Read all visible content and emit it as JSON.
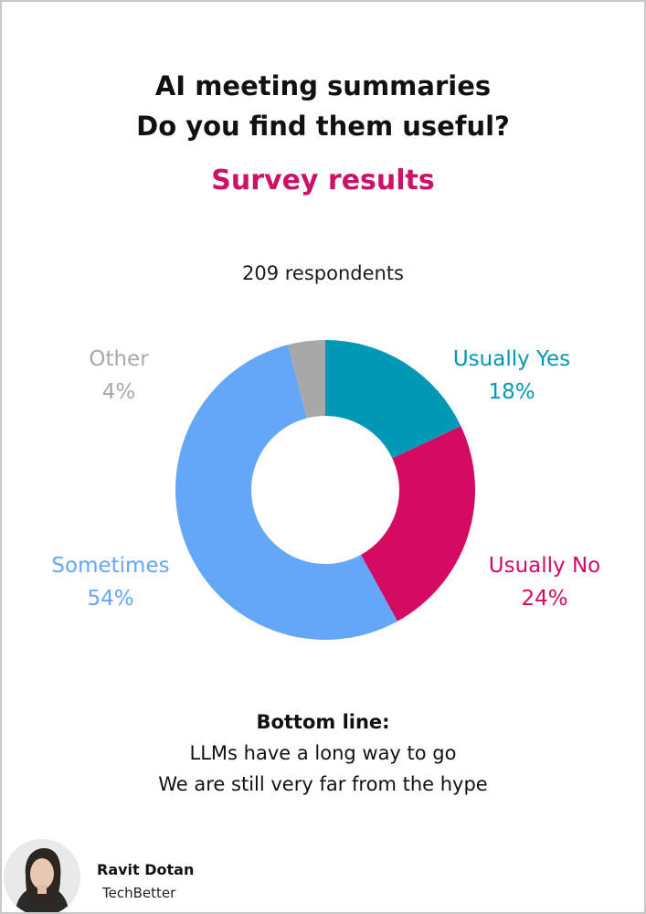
{
  "header": {
    "title_line1": "AI meeting summaries",
    "title_line2": "Do you find them useful?",
    "subtitle": "Survey results",
    "respondents": "209 respondents"
  },
  "colors": {
    "accent": "#cc1266",
    "usually_yes": "#0098b4",
    "usually_no": "#d40a63",
    "sometimes": "#64a6f8",
    "other": "#a8a8a8"
  },
  "chart_data": {
    "type": "pie",
    "style": "donut",
    "slices": [
      {
        "name": "Usually Yes",
        "value": 18,
        "label": "18%",
        "color": "#0098b4"
      },
      {
        "name": "Usually No",
        "value": 24,
        "label": "24%",
        "color": "#d40a63"
      },
      {
        "name": "Sometimes",
        "value": 54,
        "label": "54%",
        "color": "#64a6f8"
      },
      {
        "name": "Other",
        "value": 4,
        "label": "4%",
        "color": "#a8a8a8"
      }
    ]
  },
  "bottom_line": {
    "heading": "Bottom line:",
    "line1": "LLMs have a long way to go",
    "line2": "We are still very far from the hype"
  },
  "author": {
    "name": "Ravit Dotan",
    "org": "TechBetter"
  }
}
